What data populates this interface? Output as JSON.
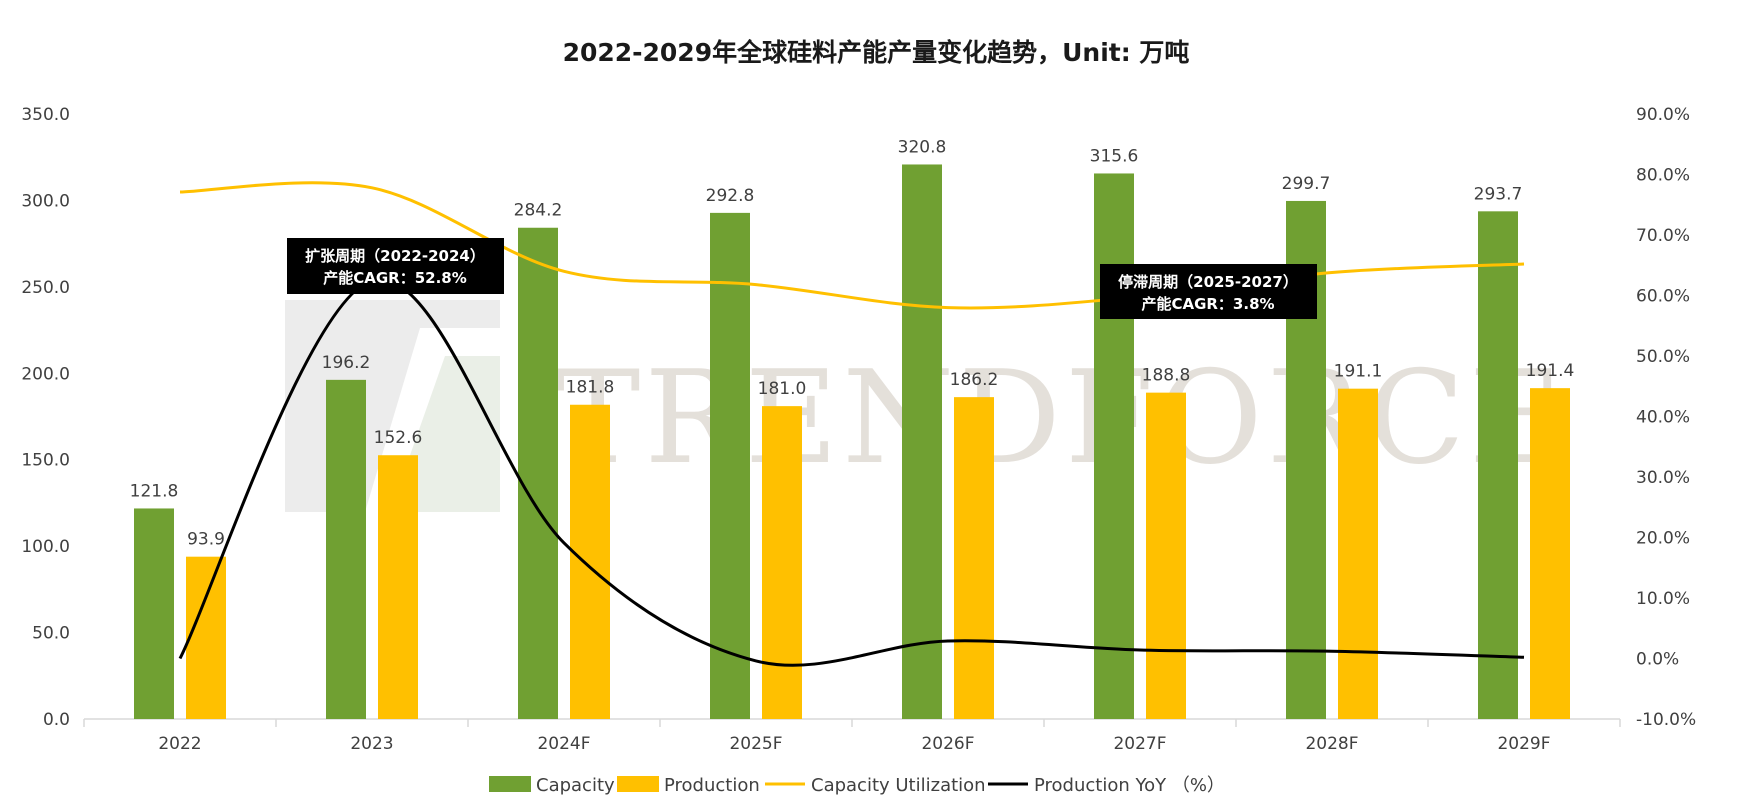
{
  "watermark": "TRENDFORCE",
  "chart_data": {
    "type": "bar",
    "title": "2022-2029年全球硅料产能产量变化趋势，Unit: 万吨",
    "categories": [
      "2022",
      "2023",
      "2024F",
      "2025F",
      "2026F",
      "2027F",
      "2028F",
      "2029F"
    ],
    "series": [
      {
        "name": "Capacity",
        "type": "bar",
        "axis": "left",
        "color": "#70a032",
        "values": [
          121.8,
          196.2,
          284.2,
          292.8,
          320.8,
          315.6,
          299.7,
          293.7
        ],
        "labels": [
          "121.8",
          "196.2",
          "284.2",
          "292.8",
          "320.8",
          "315.6",
          "299.7",
          "293.7"
        ]
      },
      {
        "name": "Production",
        "type": "bar",
        "axis": "left",
        "color": "#ffc000",
        "values": [
          93.9,
          152.6,
          181.8,
          181.0,
          186.2,
          188.8,
          191.1,
          191.4
        ],
        "labels": [
          "93.9",
          "152.6",
          "181.8",
          "181.0",
          "186.2",
          "188.8",
          "191.1",
          "191.4"
        ]
      },
      {
        "name": "Capacity Utilization",
        "type": "line",
        "axis": "right",
        "color": "#ffc000",
        "values": [
          77.1,
          77.8,
          64.0,
          61.8,
          58.0,
          59.8,
          63.8,
          65.2
        ]
      },
      {
        "name": "Production YoY （%）",
        "type": "line",
        "axis": "right",
        "color": "#000000",
        "values": [
          0.0,
          62.5,
          19.1,
          -0.4,
          2.9,
          1.4,
          1.2,
          0.2
        ]
      }
    ],
    "y_left": {
      "min": 0,
      "max": 350,
      "ticks": [
        "0.0",
        "50.0",
        "100.0",
        "150.0",
        "200.0",
        "250.0",
        "300.0",
        "350.0"
      ]
    },
    "y_right": {
      "min": -10,
      "max": 90,
      "ticks": [
        "-10.0%",
        "0.0%",
        "10.0%",
        "20.0%",
        "30.0%",
        "40.0%",
        "50.0%",
        "60.0%",
        "70.0%",
        "80.0%",
        "90.0%"
      ]
    },
    "annotations": [
      {
        "line1": "扩张周期（2022-2024）",
        "line2": "产能CAGR：52.8%"
      },
      {
        "line1": "停滞周期（2025-2027）",
        "line2": "产能CAGR：3.8%"
      }
    ],
    "legend_position": "bottom",
    "grid": false
  }
}
